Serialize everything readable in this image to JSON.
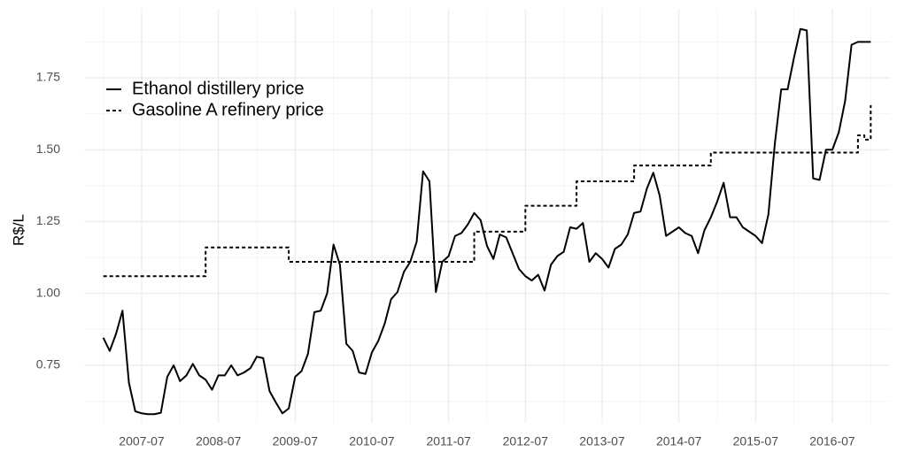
{
  "chart_data": {
    "type": "line",
    "y_label": "R$/L",
    "x": [
      "2007-01",
      "2007-02",
      "2007-03",
      "2007-04",
      "2007-05",
      "2007-06",
      "2007-07",
      "2007-08",
      "2007-09",
      "2007-10",
      "2007-11",
      "2007-12",
      "2008-01",
      "2008-02",
      "2008-03",
      "2008-04",
      "2008-05",
      "2008-06",
      "2008-07",
      "2008-08",
      "2008-09",
      "2008-10",
      "2008-11",
      "2008-12",
      "2009-01",
      "2009-02",
      "2009-03",
      "2009-04",
      "2009-05",
      "2009-06",
      "2009-07",
      "2009-08",
      "2009-09",
      "2009-10",
      "2009-11",
      "2009-12",
      "2010-01",
      "2010-02",
      "2010-03",
      "2010-04",
      "2010-05",
      "2010-06",
      "2010-07",
      "2010-08",
      "2010-09",
      "2010-10",
      "2010-11",
      "2010-12",
      "2011-01",
      "2011-02",
      "2011-03",
      "2011-04",
      "2011-05",
      "2011-06",
      "2011-07",
      "2011-08",
      "2011-09",
      "2011-10",
      "2011-11",
      "2011-12",
      "2012-01",
      "2012-02",
      "2012-03",
      "2012-04",
      "2012-05",
      "2012-06",
      "2012-07",
      "2012-08",
      "2012-09",
      "2012-10",
      "2012-11",
      "2012-12",
      "2013-01",
      "2013-02",
      "2013-03",
      "2013-04",
      "2013-05",
      "2013-06",
      "2013-07",
      "2013-08",
      "2013-09",
      "2013-10",
      "2013-11",
      "2013-12",
      "2014-01",
      "2014-02",
      "2014-03",
      "2014-04",
      "2014-05",
      "2014-06",
      "2014-07",
      "2014-08",
      "2014-09",
      "2014-10",
      "2014-11",
      "2014-12",
      "2015-01",
      "2015-02",
      "2015-03",
      "2015-04",
      "2015-05",
      "2015-06",
      "2015-07",
      "2015-08",
      "2015-09",
      "2015-10",
      "2015-11",
      "2015-12",
      "2016-01",
      "2016-02",
      "2016-03",
      "2016-04",
      "2016-05",
      "2016-06",
      "2016-07",
      "2016-08",
      "2016-09",
      "2016-10",
      "2016-11",
      "2016-12",
      "2017-01"
    ],
    "series": [
      {
        "name": "Ethanol distillery price",
        "color": "#000000",
        "line_style": "solid",
        "drawstyle": "linear",
        "values": [
          0.846,
          0.8,
          0.86,
          0.94,
          0.69,
          0.59,
          0.583,
          0.58,
          0.58,
          0.585,
          0.71,
          0.75,
          0.695,
          0.715,
          0.755,
          0.715,
          0.7,
          0.665,
          0.715,
          0.715,
          0.75,
          0.715,
          0.725,
          0.74,
          0.78,
          0.775,
          0.66,
          0.62,
          0.583,
          0.6,
          0.71,
          0.73,
          0.79,
          0.935,
          0.94,
          1.0,
          1.17,
          1.1,
          0.825,
          0.8,
          0.725,
          0.72,
          0.795,
          0.835,
          0.895,
          0.98,
          1.005,
          1.075,
          1.11,
          1.18,
          1.425,
          1.39,
          1.005,
          1.11,
          1.13,
          1.2,
          1.21,
          1.24,
          1.28,
          1.255,
          1.165,
          1.12,
          1.205,
          1.195,
          1.14,
          1.085,
          1.06,
          1.045,
          1.065,
          1.01,
          1.1,
          1.13,
          1.145,
          1.23,
          1.225,
          1.245,
          1.11,
          1.14,
          1.12,
          1.09,
          1.155,
          1.17,
          1.205,
          1.28,
          1.285,
          1.365,
          1.42,
          1.34,
          1.2,
          1.215,
          1.23,
          1.21,
          1.2,
          1.14,
          1.22,
          1.265,
          1.32,
          1.385,
          1.265,
          1.265,
          1.23,
          1.215,
          1.2,
          1.175,
          1.275,
          1.52,
          1.71,
          1.71,
          1.82,
          1.92,
          1.915,
          1.4,
          1.395,
          1.5,
          1.5,
          1.56,
          1.67,
          1.865,
          1.875,
          1.875,
          1.875
        ]
      },
      {
        "name": "Gasoline A refinery price",
        "color": "#000000",
        "line_style": "dashed",
        "drawstyle": "steps-post",
        "values": [
          1.06,
          1.06,
          1.06,
          1.06,
          1.06,
          1.06,
          1.06,
          1.06,
          1.06,
          1.06,
          1.06,
          1.06,
          1.06,
          1.06,
          1.06,
          1.06,
          1.16,
          1.16,
          1.16,
          1.16,
          1.16,
          1.16,
          1.16,
          1.16,
          1.16,
          1.16,
          1.16,
          1.16,
          1.16,
          1.11,
          1.11,
          1.11,
          1.11,
          1.11,
          1.11,
          1.11,
          1.11,
          1.11,
          1.11,
          1.11,
          1.11,
          1.11,
          1.11,
          1.11,
          1.11,
          1.11,
          1.11,
          1.11,
          1.11,
          1.11,
          1.11,
          1.11,
          1.11,
          1.11,
          1.11,
          1.11,
          1.11,
          1.11,
          1.215,
          1.215,
          1.215,
          1.215,
          1.215,
          1.215,
          1.215,
          1.215,
          1.305,
          1.305,
          1.305,
          1.305,
          1.305,
          1.305,
          1.305,
          1.305,
          1.39,
          1.39,
          1.39,
          1.39,
          1.39,
          1.39,
          1.39,
          1.39,
          1.39,
          1.445,
          1.445,
          1.445,
          1.445,
          1.445,
          1.445,
          1.445,
          1.445,
          1.445,
          1.445,
          1.445,
          1.445,
          1.49,
          1.49,
          1.49,
          1.49,
          1.49,
          1.49,
          1.49,
          1.49,
          1.49,
          1.49,
          1.49,
          1.49,
          1.49,
          1.49,
          1.49,
          1.49,
          1.49,
          1.49,
          1.49,
          1.49,
          1.49,
          1.49,
          1.49,
          1.55,
          1.535,
          1.655
        ]
      }
    ],
    "xlim": [
      "2006-10",
      "2017-04"
    ],
    "xticks": [
      "2007-07",
      "2008-07",
      "2009-07",
      "2010-07",
      "2011-07",
      "2012-07",
      "2013-07",
      "2014-07",
      "2015-07",
      "2016-07"
    ],
    "ylim": [
      0.55,
      1.99
    ],
    "yticks": [
      {
        "value": 0.75,
        "label": "0.75"
      },
      {
        "value": 1.0,
        "label": "1.00"
      },
      {
        "value": 1.25,
        "label": "1.25"
      },
      {
        "value": 1.5,
        "label": "1.50"
      },
      {
        "value": 1.75,
        "label": "1.75"
      }
    ],
    "grid": true,
    "legend": "top-left"
  }
}
